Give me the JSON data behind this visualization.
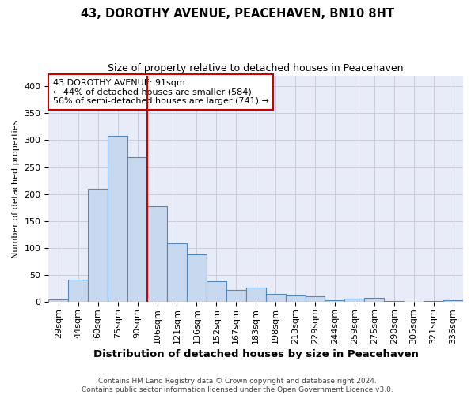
{
  "title": "43, DOROTHY AVENUE, PEACEHAVEN, BN10 8HT",
  "subtitle": "Size of property relative to detached houses in Peacehaven",
  "xlabel": "Distribution of detached houses by size in Peacehaven",
  "ylabel": "Number of detached properties",
  "footer_line1": "Contains HM Land Registry data © Crown copyright and database right 2024.",
  "footer_line2": "Contains public sector information licensed under the Open Government Licence v3.0.",
  "bin_labels": [
    "29sqm",
    "44sqm",
    "60sqm",
    "75sqm",
    "90sqm",
    "106sqm",
    "121sqm",
    "136sqm",
    "152sqm",
    "167sqm",
    "183sqm",
    "198sqm",
    "213sqm",
    "229sqm",
    "244sqm",
    "259sqm",
    "275sqm",
    "290sqm",
    "305sqm",
    "321sqm",
    "336sqm"
  ],
  "bin_values": [
    5,
    42,
    210,
    308,
    268,
    177,
    109,
    89,
    38,
    23,
    27,
    15,
    12,
    10,
    3,
    7,
    8,
    2,
    1,
    2,
    4
  ],
  "bar_color": "#c8d8ee",
  "bar_edge_color": "#5588bb",
  "property_line_x": 4.5,
  "property_line_color": "#cc0000",
  "annotation_text": "43 DOROTHY AVENUE: 91sqm\n← 44% of detached houses are smaller (584)\n56% of semi-detached houses are larger (741) →",
  "annotation_box_color": "white",
  "annotation_box_edge_color": "#cc0000",
  "ylim": [
    0,
    420
  ],
  "yticks": [
    0,
    50,
    100,
    150,
    200,
    250,
    300,
    350,
    400
  ],
  "grid_color": "#ccccdd",
  "plot_background": "#e8ecf8",
  "title_fontsize": 10.5,
  "subtitle_fontsize": 9,
  "xlabel_fontsize": 9.5,
  "ylabel_fontsize": 8,
  "tick_fontsize": 8,
  "annotation_fontsize": 8,
  "footer_fontsize": 6.5
}
